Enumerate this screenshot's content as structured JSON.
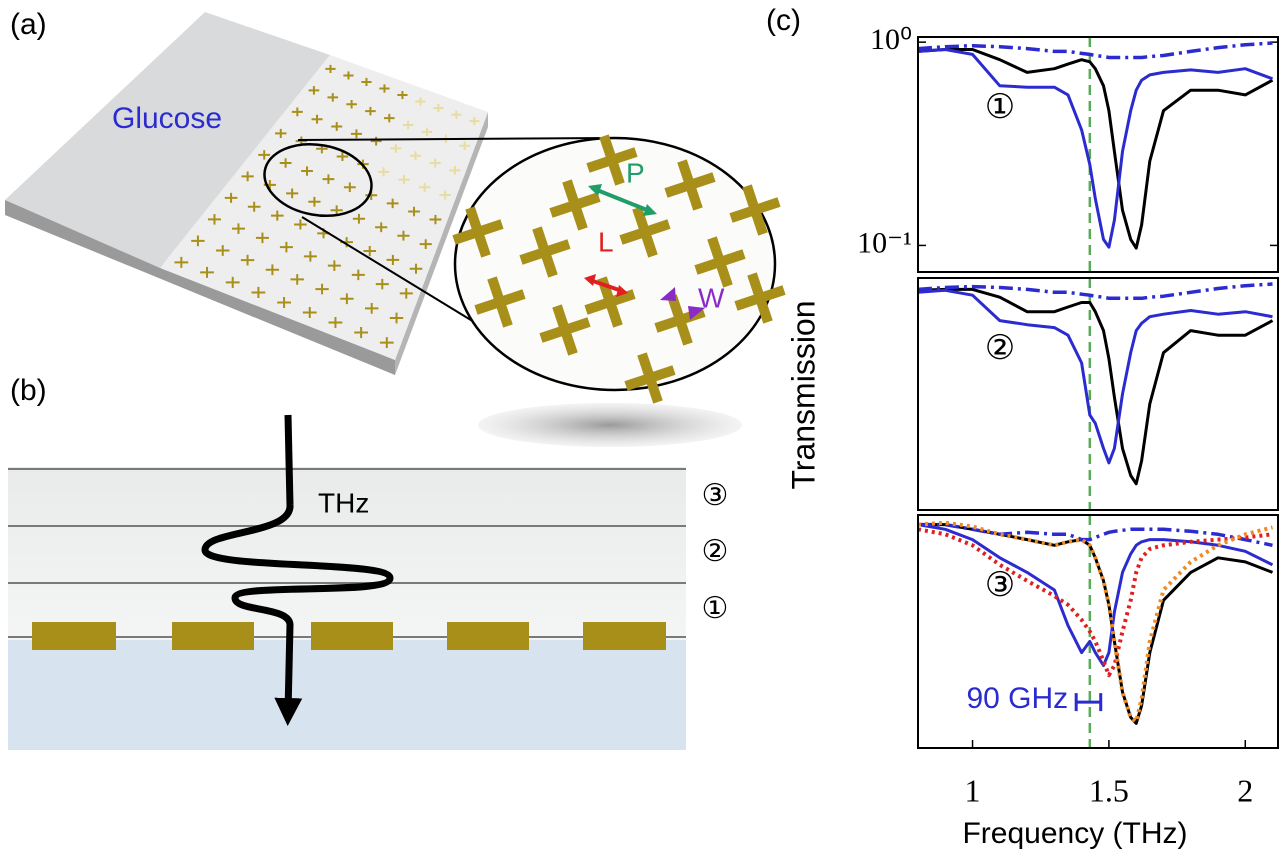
{
  "panel_labels": [
    "(a)",
    "(b)",
    "(c)"
  ],
  "diagram_a": {
    "sample_label": "Glucose",
    "params": [
      "P",
      "L",
      "W"
    ]
  },
  "diagram_b": {
    "wave_label": "THz",
    "layers": [
      "③",
      "②",
      "①"
    ]
  },
  "chart_data": [
    {
      "type": "line",
      "yscale": "log",
      "annotation": "①",
      "xlim": [
        0.8,
        2.12
      ],
      "ylim": [
        0.074,
        1.06
      ],
      "yticks": [
        {
          "value": 1,
          "label": "10⁰"
        },
        {
          "value": 0.1,
          "label": "10⁻¹"
        }
      ],
      "vline": {
        "x": 1.43,
        "color": "#5aaa5a"
      },
      "x": [
        0.8,
        0.9,
        1.0,
        1.1,
        1.2,
        1.3,
        1.35,
        1.4,
        1.43,
        1.45,
        1.48,
        1.5,
        1.52,
        1.55,
        1.58,
        1.6,
        1.62,
        1.65,
        1.7,
        1.8,
        1.9,
        2.0,
        2.1
      ],
      "series": [
        {
          "color": "#000000",
          "dash": "solid",
          "values": [
            0.9,
            0.92,
            0.92,
            0.82,
            0.71,
            0.74,
            0.78,
            0.82,
            0.8,
            0.74,
            0.61,
            0.46,
            0.29,
            0.149,
            0.107,
            0.097,
            0.126,
            0.26,
            0.46,
            0.58,
            0.58,
            0.55,
            0.65
          ]
        },
        {
          "color": "#2b2bd0",
          "dash": "solid",
          "values": [
            0.9,
            0.92,
            0.87,
            0.61,
            0.6,
            0.6,
            0.55,
            0.37,
            0.25,
            0.17,
            0.107,
            0.098,
            0.133,
            0.29,
            0.46,
            0.58,
            0.65,
            0.69,
            0.71,
            0.73,
            0.71,
            0.74,
            0.66
          ]
        },
        {
          "color": "#2b2bd0",
          "dash": "dashdot",
          "values": [
            0.93,
            0.95,
            0.96,
            0.95,
            0.93,
            0.9,
            0.9,
            0.88,
            0.87,
            0.86,
            0.85,
            0.84,
            0.84,
            0.84,
            0.84,
            0.84,
            0.84,
            0.85,
            0.86,
            0.9,
            0.94,
            0.97,
            0.99
          ]
        }
      ]
    },
    {
      "type": "line",
      "yscale": "log",
      "annotation": "②",
      "ylabel": "Transmission",
      "xlim": [
        0.8,
        2.12
      ],
      "ylim": [
        0.074,
        1.06
      ],
      "vline": {
        "x": 1.43,
        "color": "#5aaa5a"
      },
      "x": [
        0.8,
        0.9,
        1.0,
        1.1,
        1.2,
        1.3,
        1.35,
        1.4,
        1.43,
        1.45,
        1.48,
        1.5,
        1.52,
        1.55,
        1.58,
        1.6,
        1.62,
        1.65,
        1.7,
        1.8,
        1.9,
        2.0,
        2.1
      ],
      "series": [
        {
          "color": "#000000",
          "dash": "solid",
          "values": [
            0.92,
            0.93,
            0.93,
            0.85,
            0.72,
            0.72,
            0.76,
            0.8,
            0.8,
            0.72,
            0.58,
            0.42,
            0.27,
            0.15,
            0.11,
            0.1,
            0.13,
            0.25,
            0.45,
            0.58,
            0.55,
            0.55,
            0.65
          ]
        },
        {
          "color": "#2b2bd0",
          "dash": "solid",
          "values": [
            0.9,
            0.92,
            0.87,
            0.65,
            0.62,
            0.6,
            0.55,
            0.4,
            0.22,
            0.2,
            0.15,
            0.127,
            0.15,
            0.28,
            0.45,
            0.58,
            0.63,
            0.68,
            0.7,
            0.73,
            0.7,
            0.72,
            0.68
          ]
        },
        {
          "color": "#2b2bd0",
          "dash": "dashdot",
          "values": [
            0.93,
            0.95,
            0.96,
            0.95,
            0.93,
            0.9,
            0.9,
            0.88,
            0.87,
            0.86,
            0.85,
            0.84,
            0.84,
            0.84,
            0.84,
            0.84,
            0.84,
            0.85,
            0.86,
            0.9,
            0.94,
            0.97,
            0.99
          ]
        }
      ]
    },
    {
      "type": "line",
      "yscale": "log",
      "annotation": "③",
      "xlabel": "Frequency (THz)",
      "xlim": [
        0.8,
        2.12
      ],
      "ylim": [
        0.074,
        1.06
      ],
      "xticks": [
        1,
        1.5,
        2
      ],
      "vline": {
        "x": 1.43,
        "color": "#5aaa5a"
      },
      "span": {
        "label": "90 GHz",
        "x": [
          1.38,
          1.47
        ],
        "y": 0.125,
        "color": "#2b2bd0"
      },
      "x": [
        0.8,
        0.9,
        1.0,
        1.1,
        1.2,
        1.3,
        1.35,
        1.4,
        1.43,
        1.45,
        1.48,
        1.5,
        1.52,
        1.55,
        1.58,
        1.6,
        1.62,
        1.65,
        1.7,
        1.8,
        1.9,
        2.0,
        2.1
      ],
      "series": [
        {
          "color": "#000000",
          "dash": "solid",
          "values": [
            0.95,
            0.95,
            0.9,
            0.85,
            0.8,
            0.75,
            0.78,
            0.8,
            0.75,
            0.65,
            0.5,
            0.38,
            0.25,
            0.14,
            0.105,
            0.098,
            0.12,
            0.22,
            0.4,
            0.55,
            0.65,
            0.62,
            0.55
          ]
        },
        {
          "color": "#2b2bd0",
          "dash": "solid",
          "values": [
            0.95,
            0.9,
            0.8,
            0.65,
            0.55,
            0.45,
            0.3,
            0.22,
            0.25,
            0.22,
            0.19,
            0.22,
            0.35,
            0.55,
            0.68,
            0.75,
            0.78,
            0.8,
            0.8,
            0.78,
            0.75,
            0.7,
            0.6
          ]
        },
        {
          "color": "#2b2bd0",
          "dash": "dashdot",
          "values": [
            0.95,
            0.95,
            0.9,
            0.85,
            0.87,
            0.85,
            0.85,
            0.8,
            0.8,
            0.82,
            0.85,
            0.87,
            0.88,
            0.89,
            0.9,
            0.9,
            0.9,
            0.9,
            0.9,
            0.88,
            0.85,
            0.8,
            0.75
          ]
        },
        {
          "color": "#e02020",
          "dash": "dotted",
          "values": [
            0.9,
            0.85,
            0.75,
            0.6,
            0.5,
            0.42,
            0.38,
            0.32,
            0.28,
            0.25,
            0.2,
            0.17,
            0.19,
            0.28,
            0.4,
            0.55,
            0.65,
            0.72,
            0.75,
            0.78,
            0.8,
            0.82,
            0.85
          ]
        },
        {
          "color": "#f08a24",
          "dash": "dotted",
          "values": [
            0.95,
            0.97,
            0.93,
            0.85,
            0.8,
            0.75,
            0.78,
            0.8,
            0.75,
            0.65,
            0.5,
            0.38,
            0.25,
            0.14,
            0.105,
            0.1,
            0.13,
            0.25,
            0.45,
            0.62,
            0.75,
            0.85,
            0.92
          ]
        }
      ]
    }
  ]
}
